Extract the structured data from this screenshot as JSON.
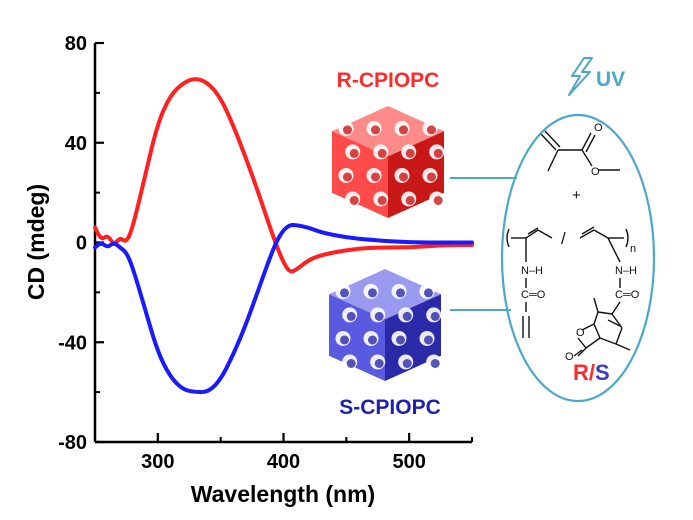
{
  "chart_data": {
    "type": "line",
    "xlabel": "Wavelength (nm)",
    "ylabel": "CD (mdeg)",
    "xlim": [
      250,
      550
    ],
    "ylim": [
      -80,
      80
    ],
    "x_ticks": [
      300,
      400,
      500
    ],
    "y_ticks": [
      80,
      40,
      0,
      -40,
      -80
    ],
    "grid": false,
    "series": [
      {
        "name": "R-CPIOPC",
        "color": "#ff2020",
        "x": [
          250,
          255,
          260,
          265,
          270,
          275,
          280,
          290,
          300,
          310,
          320,
          330,
          340,
          350,
          360,
          370,
          380,
          390,
          395,
          400,
          405,
          410,
          420,
          430,
          450,
          470,
          500,
          530,
          550
        ],
        "y": [
          6,
          1,
          3,
          -1,
          2,
          0,
          6,
          27,
          48,
          59,
          64,
          66,
          64,
          58,
          47,
          34,
          20,
          5,
          -2,
          -8,
          -12,
          -11,
          -7,
          -5,
          -3,
          -2,
          -2,
          -1,
          -1
        ]
      },
      {
        "name": "S-CPIOPC",
        "color": "#1a1aff",
        "x": [
          250,
          255,
          260,
          265,
          270,
          275,
          280,
          290,
          300,
          310,
          320,
          330,
          340,
          350,
          360,
          370,
          380,
          390,
          395,
          400,
          405,
          410,
          420,
          430,
          450,
          470,
          500,
          530,
          550
        ],
        "y": [
          -2,
          0,
          -2,
          0,
          -2,
          -4,
          -10,
          -27,
          -44,
          -54,
          -59,
          -60,
          -60,
          -55,
          -45,
          -33,
          -19,
          -5,
          1,
          5,
          7,
          7,
          6,
          4,
          2,
          1,
          0,
          0,
          0
        ]
      }
    ]
  },
  "annotations": {
    "r_label": "R-CPIOPC",
    "s_label": "S-CPIOPC",
    "uv_label": "UV",
    "r_color": "#ff2a2a",
    "s_color": "#2020b0",
    "ellipse_color": "#4aa8c9",
    "chem": {
      "plus": "+",
      "slash": "/",
      "subscript_n": "n",
      "nh_left": "N–H",
      "co_left": "C═O",
      "nh_right": "N–H",
      "co_right": "C═O",
      "rs_r": "R",
      "rs_slash": "/",
      "rs_s": "S"
    }
  }
}
